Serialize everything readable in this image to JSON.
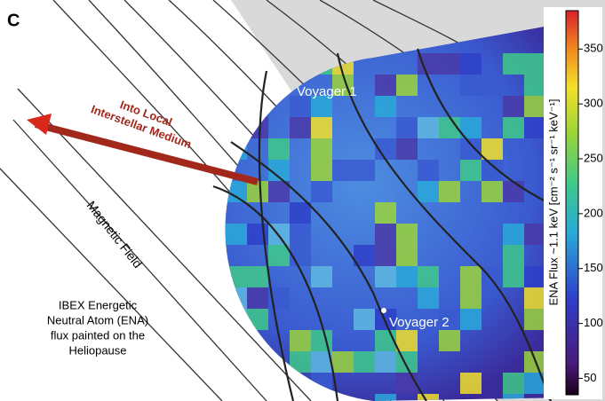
{
  "panel_label": "C",
  "annotations": {
    "voyager_1": "Voyager 1",
    "voyager_2": "Voyager 2",
    "arrow_label": [
      "Into Local",
      "Interstellar Medium"
    ],
    "field_label": "Magnetic Field",
    "caption": [
      "IBEX Energetic",
      "Neutral Atom (ENA)",
      "flux painted on the",
      "Heliopause"
    ]
  },
  "colorbar": {
    "label": "ENA Flux ~1.1 keV [cm⁻² s⁻¹ sr⁻¹ keV⁻¹]",
    "lim": [
      35,
      385
    ],
    "ticks": [
      50,
      100,
      150,
      200,
      250,
      300,
      350
    ]
  }
}
